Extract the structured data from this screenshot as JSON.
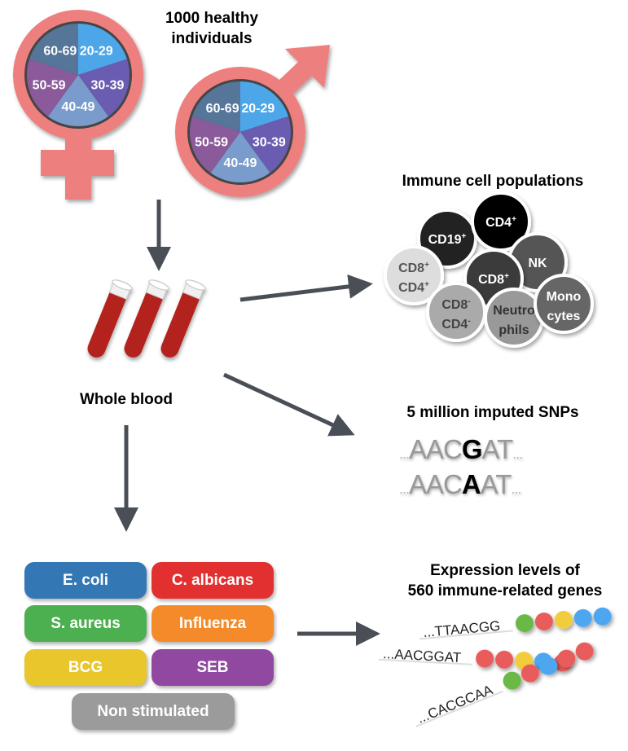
{
  "cohort": {
    "title_line1": "1000 healthy",
    "title_line2": "individuals",
    "age_groups": [
      {
        "label": "20-29",
        "color": "#4da6e8"
      },
      {
        "label": "30-39",
        "color": "#6a5bb0"
      },
      {
        "label": "40-49",
        "color": "#7a9ccc"
      },
      {
        "label": "50-59",
        "color": "#8a5a9a"
      },
      {
        "label": "60-69",
        "color": "#557499"
      }
    ],
    "symbol_color": "#ee7f7f"
  },
  "blood": {
    "label": "Whole blood",
    "tube_color": "#b3201e"
  },
  "immune": {
    "title": "Immune cell populations",
    "cells": [
      {
        "l1": "CD19",
        "sup1": "+",
        "l2": "",
        "sup2": "",
        "fill": "#222222",
        "text": "#ffffff"
      },
      {
        "l1": "CD4",
        "sup1": "+",
        "l2": "",
        "sup2": "",
        "fill": "#000000",
        "text": "#ffffff"
      },
      {
        "l1": "NK",
        "sup1": "",
        "l2": "",
        "sup2": "",
        "fill": "#555555",
        "text": "#ffffff"
      },
      {
        "l1": "CD8",
        "sup1": "+",
        "l2": "",
        "sup2": "",
        "fill": "#3a3a3a",
        "text": "#ffffff"
      },
      {
        "l1": "CD8",
        "sup1": "+",
        "l2": "CD4",
        "sup2": "+",
        "fill": "#dddddd",
        "text": "#555555"
      },
      {
        "l1": "CD8",
        "sup1": "-",
        "l2": "CD4",
        "sup2": "-",
        "fill": "#aaaaaa",
        "text": "#444444"
      },
      {
        "l1": "Neutro",
        "sup1": "",
        "l2": "phils",
        "sup2": "",
        "fill": "#999999",
        "text": "#333333"
      },
      {
        "l1": "Mono",
        "sup1": "",
        "l2": "cytes",
        "sup2": "",
        "fill": "#666666",
        "text": "#ffffff"
      }
    ]
  },
  "snps": {
    "title": "5 million imputed SNPs",
    "seq1": {
      "pre": "AAC",
      "snp": "G",
      "post": "AT"
    },
    "seq2": {
      "pre": "AAC",
      "snp": "A",
      "post": "AT"
    },
    "ellipsis": "..."
  },
  "stimuli": [
    {
      "label": "E. coli",
      "color": "#3477b5"
    },
    {
      "label": "C. albicans",
      "color": "#e23030"
    },
    {
      "label": "S. aureus",
      "color": "#4caf50"
    },
    {
      "label": "Influenza",
      "color": "#f58a2a"
    },
    {
      "label": "BCG",
      "color": "#e8c62c"
    },
    {
      "label": "SEB",
      "color": "#9148a0"
    },
    {
      "label": "Non stimulated",
      "color": "#9b9b9b"
    }
  ],
  "expression": {
    "title_line1": "Expression levels of",
    "title_line2": "560 immune-related genes",
    "rows": [
      {
        "seq": "...TTAACGG",
        "dots": [
          "#6ab845",
          "#e85c5c",
          "#f2cd3a",
          "#4da6f0",
          "#4da6f0"
        ]
      },
      {
        "seq": "...AACGGAT",
        "dots": [
          "#e85c5c",
          "#e85c5c",
          "#f2cd3a",
          "#4da6f0",
          "#e85c5c"
        ]
      },
      {
        "seq": "...CACGCAA",
        "dots": [
          "#6ab845",
          "#e85c5c",
          "#4da6f0",
          "#e85c5c",
          "#e85c5c"
        ]
      }
    ]
  },
  "arrow_color": "#4a4f57"
}
